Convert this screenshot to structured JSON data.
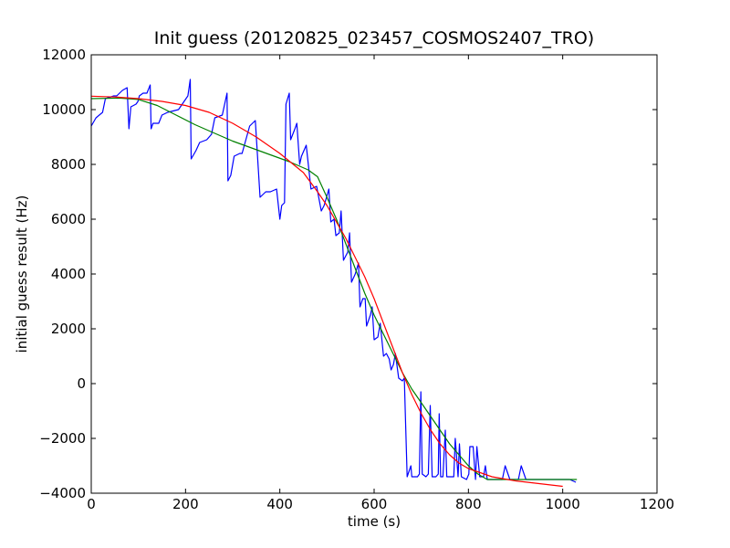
{
  "chart_data": {
    "type": "line",
    "title": "Init guess (20120825_023457_COSMOS2407_TRO)",
    "xlabel": "time (s)",
    "ylabel": "initial guess result (Hz)",
    "xlim": [
      0,
      1200
    ],
    "ylim": [
      -4000,
      12000
    ],
    "xticks": [
      0,
      200,
      400,
      600,
      800,
      1000,
      1200
    ],
    "yticks": [
      -4000,
      -2000,
      0,
      2000,
      4000,
      6000,
      8000,
      10000,
      12000
    ],
    "xtick_labels": [
      "0",
      "200",
      "400",
      "600",
      "800",
      "1000",
      "1200"
    ],
    "ytick_labels": [
      "−4000",
      "−2000",
      "0",
      "2000",
      "4000",
      "6000",
      "8000",
      "10000",
      "12000"
    ],
    "grid": false,
    "legend": "none",
    "series": [
      {
        "color": "#0000ff",
        "points": [
          [
            0,
            9400
          ],
          [
            10,
            9700
          ],
          [
            24,
            9900
          ],
          [
            30,
            10400
          ],
          [
            48,
            10500
          ],
          [
            54,
            10500
          ],
          [
            66,
            10700
          ],
          [
            76,
            10800
          ],
          [
            80,
            9300
          ],
          [
            84,
            10100
          ],
          [
            95,
            10200
          ],
          [
            99,
            10300
          ],
          [
            102,
            10500
          ],
          [
            110,
            10600
          ],
          [
            118,
            10600
          ],
          [
            125,
            10900
          ],
          [
            127,
            9300
          ],
          [
            131,
            9500
          ],
          [
            143,
            9500
          ],
          [
            150,
            9800
          ],
          [
            162,
            9900
          ],
          [
            185,
            10000
          ],
          [
            205,
            10500
          ],
          [
            210,
            11100
          ],
          [
            212,
            8200
          ],
          [
            222,
            8500
          ],
          [
            230,
            8800
          ],
          [
            245,
            8900
          ],
          [
            255,
            9100
          ],
          [
            262,
            9700
          ],
          [
            278,
            9800
          ],
          [
            288,
            10600
          ],
          [
            290,
            7400
          ],
          [
            296,
            7600
          ],
          [
            303,
            8300
          ],
          [
            315,
            8400
          ],
          [
            320,
            8400
          ],
          [
            336,
            9400
          ],
          [
            348,
            9600
          ],
          [
            358,
            6800
          ],
          [
            370,
            7000
          ],
          [
            380,
            7000
          ],
          [
            393,
            7100
          ],
          [
            400,
            6000
          ],
          [
            404,
            6500
          ],
          [
            410,
            6600
          ],
          [
            413,
            10200
          ],
          [
            420,
            10600
          ],
          [
            423,
            8900
          ],
          [
            432,
            9300
          ],
          [
            436,
            9500
          ],
          [
            442,
            8000
          ],
          [
            446,
            8300
          ],
          [
            456,
            8700
          ],
          [
            466,
            7100
          ],
          [
            478,
            7200
          ],
          [
            488,
            6300
          ],
          [
            494,
            6500
          ],
          [
            504,
            7100
          ],
          [
            508,
            5900
          ],
          [
            515,
            6000
          ],
          [
            519,
            5400
          ],
          [
            526,
            5500
          ],
          [
            530,
            6300
          ],
          [
            535,
            4500
          ],
          [
            544,
            4800
          ],
          [
            548,
            5500
          ],
          [
            552,
            3700
          ],
          [
            560,
            4000
          ],
          [
            567,
            4400
          ],
          [
            570,
            2800
          ],
          [
            576,
            3100
          ],
          [
            581,
            3100
          ],
          [
            584,
            2100
          ],
          [
            592,
            2500
          ],
          [
            596,
            2800
          ],
          [
            600,
            1600
          ],
          [
            608,
            1700
          ],
          [
            613,
            2200
          ],
          [
            620,
            1000
          ],
          [
            626,
            1100
          ],
          [
            632,
            900
          ],
          [
            636,
            500
          ],
          [
            641,
            700
          ],
          [
            645,
            1100
          ],
          [
            652,
            200
          ],
          [
            660,
            100
          ],
          [
            664,
            200
          ],
          [
            666,
            -1000
          ],
          [
            670,
            -3400
          ],
          [
            678,
            -3000
          ],
          [
            680,
            -3400
          ],
          [
            692,
            -3400
          ],
          [
            696,
            -3300
          ],
          [
            699,
            -300
          ],
          [
            702,
            -3300
          ],
          [
            710,
            -3400
          ],
          [
            715,
            -3300
          ],
          [
            719,
            -800
          ],
          [
            723,
            -3400
          ],
          [
            731,
            -3400
          ],
          [
            736,
            -3300
          ],
          [
            738,
            -1100
          ],
          [
            741,
            -3400
          ],
          [
            746,
            -3400
          ],
          [
            751,
            -1700
          ],
          [
            754,
            -3400
          ],
          [
            769,
            -3400
          ],
          [
            772,
            -2000
          ],
          [
            778,
            -3400
          ],
          [
            781,
            -2200
          ],
          [
            785,
            -3400
          ],
          [
            796,
            -3500
          ],
          [
            801,
            -3300
          ],
          [
            803,
            -2300
          ],
          [
            810,
            -2300
          ],
          [
            815,
            -3500
          ],
          [
            818,
            -2300
          ],
          [
            824,
            -3400
          ],
          [
            832,
            -3400
          ],
          [
            836,
            -3000
          ],
          [
            840,
            -3500
          ],
          [
            856,
            -3500
          ],
          [
            868,
            -3500
          ],
          [
            872,
            -3500
          ],
          [
            878,
            -3000
          ],
          [
            884,
            -3300
          ],
          [
            888,
            -3500
          ],
          [
            900,
            -3500
          ],
          [
            906,
            -3500
          ],
          [
            912,
            -3000
          ],
          [
            918,
            -3300
          ],
          [
            922,
            -3500
          ],
          [
            935,
            -3500
          ],
          [
            947,
            -3500
          ],
          [
            970,
            -3500
          ],
          [
            985,
            -3500
          ],
          [
            1000,
            -3500
          ],
          [
            1015,
            -3500
          ],
          [
            1028,
            -3600
          ]
        ]
      },
      {
        "color": "#008000",
        "points": [
          [
            0,
            10400
          ],
          [
            60,
            10420
          ],
          [
            100,
            10370
          ],
          [
            140,
            10150
          ],
          [
            180,
            9800
          ],
          [
            220,
            9450
          ],
          [
            260,
            9150
          ],
          [
            300,
            8850
          ],
          [
            340,
            8600
          ],
          [
            380,
            8350
          ],
          [
            420,
            8100
          ],
          [
            460,
            7800
          ],
          [
            480,
            7550
          ],
          [
            500,
            6800
          ],
          [
            520,
            6000
          ],
          [
            540,
            5100
          ],
          [
            560,
            4200
          ],
          [
            580,
            3300
          ],
          [
            600,
            2500
          ],
          [
            620,
            1800
          ],
          [
            640,
            1100
          ],
          [
            660,
            400
          ],
          [
            680,
            -200
          ],
          [
            700,
            -700
          ],
          [
            720,
            -1200
          ],
          [
            740,
            -1700
          ],
          [
            760,
            -2200
          ],
          [
            780,
            -2600
          ],
          [
            800,
            -3000
          ],
          [
            820,
            -3300
          ],
          [
            840,
            -3500
          ],
          [
            880,
            -3500
          ],
          [
            950,
            -3500
          ],
          [
            1030,
            -3500
          ]
        ]
      },
      {
        "color": "#ff0000",
        "points": [
          [
            0,
            10490
          ],
          [
            50,
            10460
          ],
          [
            100,
            10400
          ],
          [
            150,
            10300
          ],
          [
            200,
            10150
          ],
          [
            250,
            9900
          ],
          [
            300,
            9500
          ],
          [
            350,
            9000
          ],
          [
            400,
            8400
          ],
          [
            450,
            7700
          ],
          [
            480,
            7000
          ],
          [
            500,
            6500
          ],
          [
            540,
            5300
          ],
          [
            580,
            3900
          ],
          [
            600,
            3100
          ],
          [
            620,
            2200
          ],
          [
            640,
            1300
          ],
          [
            660,
            400
          ],
          [
            680,
            -400
          ],
          [
            700,
            -1100
          ],
          [
            720,
            -1700
          ],
          [
            740,
            -2200
          ],
          [
            760,
            -2600
          ],
          [
            780,
            -2900
          ],
          [
            800,
            -3100
          ],
          [
            850,
            -3400
          ],
          [
            900,
            -3550
          ],
          [
            950,
            -3650
          ],
          [
            1000,
            -3750
          ]
        ]
      }
    ]
  }
}
